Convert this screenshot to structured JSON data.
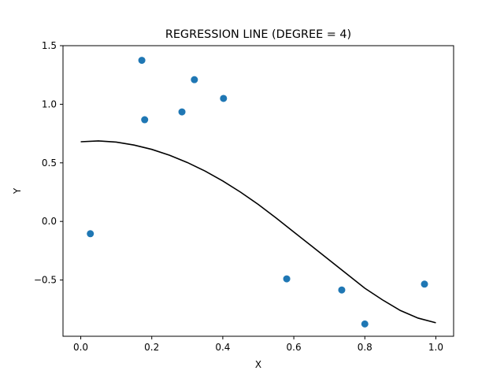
{
  "chart_data": {
    "type": "scatter",
    "title": "REGRESSION LINE (DEGREE = 4)",
    "xlabel": "X",
    "ylabel": "Y",
    "xlim": [
      -0.05,
      1.05
    ],
    "ylim": [
      -0.98,
      1.5
    ],
    "x_ticks": [
      0.0,
      0.2,
      0.4,
      0.6,
      0.8,
      1.0
    ],
    "x_tick_labels": [
      "0.0",
      "0.2",
      "0.4",
      "0.6",
      "0.8",
      "1.0"
    ],
    "y_ticks": [
      1.5,
      1.0,
      0.5,
      0.0,
      -0.5
    ],
    "y_tick_labels": [
      "1.5",
      "1.0",
      "0.5",
      "0.0",
      "−0.5"
    ],
    "grid": false,
    "scatter": {
      "color": "#1f77b4",
      "points": [
        {
          "x": 0.027,
          "y": -0.105
        },
        {
          "x": 0.172,
          "y": 1.375
        },
        {
          "x": 0.18,
          "y": 0.868
        },
        {
          "x": 0.285,
          "y": 0.935
        },
        {
          "x": 0.32,
          "y": 1.21
        },
        {
          "x": 0.402,
          "y": 1.05
        },
        {
          "x": 0.58,
          "y": -0.49
        },
        {
          "x": 0.735,
          "y": -0.585
        },
        {
          "x": 0.8,
          "y": -0.875
        },
        {
          "x": 0.968,
          "y": -0.535
        }
      ]
    },
    "regression_line": {
      "color": "#000000",
      "degree": 4,
      "x": [
        0.0,
        0.05,
        0.1,
        0.15,
        0.2,
        0.25,
        0.3,
        0.35,
        0.4,
        0.45,
        0.5,
        0.55,
        0.6,
        0.65,
        0.7,
        0.75,
        0.8,
        0.85,
        0.9,
        0.95,
        1.0
      ],
      "y": [
        0.68,
        0.687,
        0.677,
        0.652,
        0.615,
        0.565,
        0.503,
        0.43,
        0.345,
        0.25,
        0.145,
        0.03,
        -0.09,
        -0.21,
        -0.33,
        -0.45,
        -0.57,
        -0.67,
        -0.76,
        -0.825,
        -0.865
      ]
    }
  }
}
